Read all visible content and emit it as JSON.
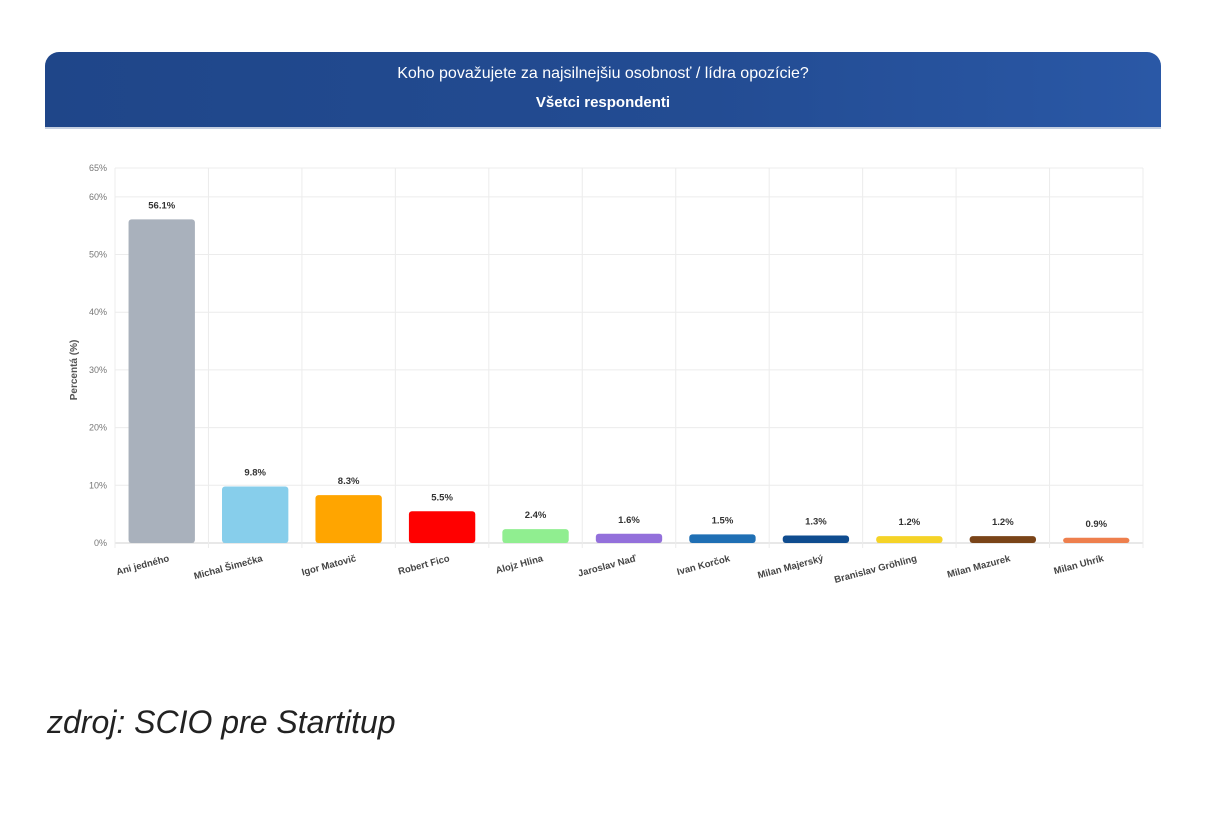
{
  "chart_data": {
    "type": "bar",
    "title": "Koho považujete za najsilnejšiu osobnosť / lídra opozície?",
    "subtitle": "Všetci respondenti",
    "xlabel": "",
    "ylabel": "Percentá (%)",
    "ylim": [
      0,
      65
    ],
    "yticks": [
      0,
      10,
      20,
      30,
      40,
      50,
      60,
      65
    ],
    "ytick_labels": [
      "0%",
      "10%",
      "20%",
      "30%",
      "40%",
      "50%",
      "60%",
      "65%"
    ],
    "grid": true,
    "categories": [
      "Ani jedného",
      "Michal Šimečka",
      "Igor Matovič",
      "Robert Fico",
      "Alojz Hlina",
      "Jaroslav Naď",
      "Ivan Korčok",
      "Milan Majerský",
      "Branislav Gröhling",
      "Milan Mazurek",
      "Milan Uhrík"
    ],
    "values": [
      56.1,
      9.8,
      8.3,
      5.5,
      2.4,
      1.6,
      1.5,
      1.3,
      1.2,
      1.2,
      0.9
    ],
    "data_labels": [
      "56.1%",
      "9.8%",
      "8.3%",
      "5.5%",
      "2.4%",
      "1.6%",
      "1.5%",
      "1.3%",
      "1.2%",
      "1.2%",
      "0.9%"
    ],
    "colors": [
      "#a9b1bc",
      "#87ceeb",
      "#ffa500",
      "#ff0000",
      "#90ee90",
      "#9370db",
      "#1f6fb4",
      "#0f4c8f",
      "#f5d327",
      "#7a4418",
      "#ee7f4d"
    ]
  },
  "banner": {
    "title": "Koho považujete za najsilnejšiu osobnosť / lídra opozície?",
    "subtitle": "Všetci respondenti"
  },
  "source": "zdroj: SCIO pre Startitup"
}
